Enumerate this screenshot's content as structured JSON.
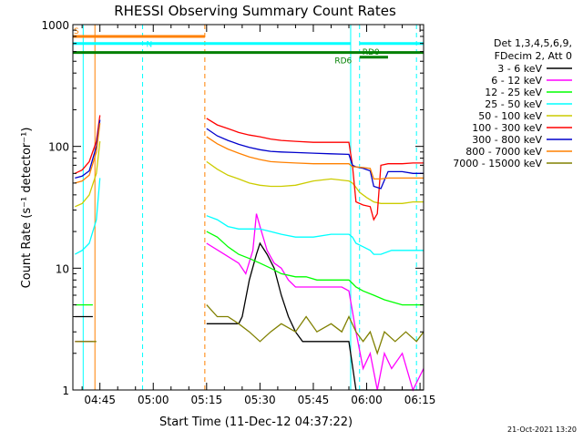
{
  "chart_data": {
    "type": "line",
    "title": "RHESSI Observing Summary Count Rates",
    "xlabel": "Start Time (11-Dec-12 04:37:22)",
    "ylabel": "Count Rate (s⁻¹ detector⁻¹)",
    "yscale": "log",
    "ylim": [
      1,
      1000
    ],
    "xlim_minutes_after_0400": [
      37.4,
      136
    ],
    "x_ticks": [
      {
        "label": "04:45",
        "min": 45
      },
      {
        "label": "05:00",
        "min": 60
      },
      {
        "label": "05:15",
        "min": 75
      },
      {
        "label": "05:30",
        "min": 90
      },
      {
        "label": "05:45",
        "min": 105
      },
      {
        "label": "06:00",
        "min": 120
      },
      {
        "label": "06:15",
        "min": 135
      }
    ],
    "y_ticks": [
      {
        "label": "1",
        "value": 1
      },
      {
        "label": "10",
        "value": 10
      },
      {
        "label": "100",
        "value": 100
      },
      {
        "label": "1000",
        "value": 1000
      }
    ],
    "legend_header": [
      "Det 1,3,4,5,6,9,",
      "FDecim 2, Att 0"
    ],
    "legend_placement": "right",
    "series": [
      {
        "name": "3 - 6 keV",
        "color": "#000000",
        "x": [
          38,
          40,
          42,
          43,
          75,
          77,
          80,
          84,
          85,
          87,
          89,
          90,
          92,
          94,
          96,
          98,
          100,
          102,
          105,
          110,
          115,
          117,
          119,
          122,
          124,
          126,
          128,
          130,
          132,
          134,
          136
        ],
        "y": [
          4,
          4,
          4,
          4,
          3.5,
          3.5,
          3.5,
          3.5,
          4,
          8,
          13,
          16,
          13,
          10,
          6,
          4,
          3,
          2.5,
          2.5,
          2.5,
          2.5,
          1,
          1,
          1,
          1,
          1,
          1,
          1,
          1,
          1,
          1
        ]
      },
      {
        "name": "6 - 12 keV",
        "color": "#ff00ff",
        "x": [
          38,
          40,
          42,
          43,
          75,
          80,
          84,
          86,
          88,
          89,
          90,
          92,
          94,
          96,
          98,
          100,
          103,
          106,
          110,
          113,
          115,
          117,
          119,
          121,
          123,
          125,
          127,
          130,
          133,
          136
        ],
        "y": [
          2.5,
          2.5,
          2.5,
          2.5,
          16,
          13,
          11,
          9,
          14,
          28,
          22,
          14,
          11,
          10,
          8,
          7,
          7,
          7,
          7,
          7,
          6.5,
          3,
          1.5,
          2,
          1,
          2,
          1.5,
          2,
          1,
          1.5
        ]
      },
      {
        "name": "12 - 25 keV",
        "color": "#00ff00",
        "x": [
          38,
          40,
          42,
          43,
          75,
          78,
          81,
          84,
          87,
          90,
          93,
          96,
          100,
          103,
          106,
          110,
          115,
          116,
          117,
          119,
          122,
          125,
          130,
          133,
          136
        ],
        "y": [
          5,
          5,
          5,
          5,
          20,
          18,
          15,
          13,
          12,
          11,
          10,
          9,
          8.5,
          8.5,
          8,
          8,
          8,
          7.5,
          7,
          6.5,
          6,
          5.5,
          5,
          5,
          5
        ]
      },
      {
        "name": "25 - 50 keV",
        "color": "#00ffff",
        "x": [
          38,
          40,
          42,
          44,
          45,
          75,
          78,
          81,
          84,
          87,
          90,
          93,
          96,
          100,
          105,
          110,
          115,
          116,
          117,
          119,
          121,
          122,
          124,
          127,
          130,
          133,
          136
        ],
        "y": [
          13,
          14,
          16,
          25,
          55,
          27,
          25,
          22,
          21,
          21,
          21,
          20,
          19,
          18,
          18,
          19,
          19,
          18,
          16,
          15,
          14,
          13,
          13,
          14,
          14,
          14,
          14
        ]
      },
      {
        "name": "50 - 100 keV",
        "color": "#cccc00",
        "x": [
          38,
          40,
          42,
          44,
          45,
          75,
          78,
          81,
          84,
          87,
          90,
          93,
          96,
          100,
          105,
          110,
          115,
          116,
          117,
          118,
          120,
          122,
          124,
          127,
          130,
          133,
          136
        ],
        "y": [
          32,
          34,
          40,
          60,
          110,
          75,
          65,
          58,
          54,
          50,
          48,
          47,
          47,
          48,
          52,
          54,
          52,
          50,
          46,
          42,
          38,
          35,
          34,
          34,
          34,
          35,
          35
        ]
      },
      {
        "name": "100 - 300 keV",
        "color": "#ff0000",
        "x": [
          38,
          40,
          42,
          44,
          45,
          75,
          78,
          81,
          84,
          87,
          90,
          93,
          96,
          100,
          105,
          110,
          115,
          116,
          117,
          119,
          121,
          122,
          123,
          124,
          126,
          128,
          130,
          133,
          136
        ],
        "y": [
          60,
          64,
          75,
          110,
          180,
          170,
          150,
          140,
          130,
          124,
          120,
          115,
          112,
          110,
          108,
          108,
          108,
          70,
          35,
          33,
          32,
          25,
          28,
          70,
          72,
          72,
          72,
          73,
          73
        ]
      },
      {
        "name": "300 - 800 keV",
        "color": "#0000cc",
        "x": [
          38,
          40,
          42,
          44,
          45,
          75,
          78,
          81,
          84,
          87,
          90,
          93,
          96,
          100,
          105,
          110,
          115,
          116,
          117,
          119,
          121,
          122,
          124,
          126,
          128,
          130,
          133,
          136
        ],
        "y": [
          55,
          57,
          63,
          100,
          165,
          140,
          122,
          112,
          104,
          98,
          94,
          91,
          90,
          89,
          88,
          87,
          86,
          70,
          68,
          66,
          63,
          47,
          45,
          62,
          62,
          62,
          60,
          60
        ]
      },
      {
        "name": "800 - 7000 keV",
        "color": "#ff8000",
        "x": [
          38,
          40,
          42,
          44,
          45,
          75,
          78,
          81,
          84,
          87,
          90,
          93,
          96,
          100,
          105,
          110,
          115,
          116,
          117,
          119,
          121,
          122,
          124,
          126,
          128,
          130,
          133,
          136
        ],
        "y": [
          50,
          52,
          58,
          90,
          155,
          120,
          105,
          95,
          88,
          82,
          78,
          75,
          74,
          73,
          72,
          72,
          72,
          68,
          68,
          67,
          66,
          54,
          54,
          55,
          55,
          55,
          55,
          55
        ]
      },
      {
        "name": "7000 - 15000 keV",
        "color": "#808000",
        "x": [
          38,
          40,
          42,
          44,
          75,
          78,
          81,
          84,
          87,
          90,
          93,
          96,
          100,
          103,
          106,
          110,
          113,
          115,
          117,
          119,
          121,
          123,
          125,
          128,
          131,
          134,
          136
        ],
        "y": [
          2.5,
          2.5,
          2.5,
          2.5,
          5,
          4,
          4,
          3.5,
          3,
          2.5,
          3,
          3.5,
          3,
          4,
          3,
          3.5,
          3,
          4,
          3,
          2.5,
          3,
          2,
          3,
          2.5,
          3,
          2.5,
          3
        ]
      }
    ],
    "attenuator_bars": [
      {
        "label": "S",
        "color": "#ff8000",
        "from": 37.4,
        "to": 74.5,
        "level": 800
      },
      {
        "label": "N",
        "color": "#00ffff",
        "from": 37.4,
        "to": 115.5,
        "level": 700
      },
      {
        "label": "",
        "color": "#00ffff",
        "from": 118,
        "to": 136,
        "level": 700
      },
      {
        "label": "RD6",
        "color": "#008000",
        "from": 37.4,
        "to": 136,
        "level": 590
      },
      {
        "label": "RD0",
        "color": "#008000",
        "from": 118,
        "to": 126,
        "level": 540
      }
    ],
    "vertical_markers": [
      {
        "min": 40.3,
        "color": "#00ffff",
        "style": "solid"
      },
      {
        "min": 43.6,
        "color": "#ff8000",
        "style": "solid"
      },
      {
        "min": 57.0,
        "color": "#00ffff",
        "style": "dashed"
      },
      {
        "min": 74.5,
        "color": "#ff8000",
        "style": "dashed"
      },
      {
        "min": 115.5,
        "color": "#00ffff",
        "style": "solid"
      },
      {
        "min": 118.0,
        "color": "#00ffff",
        "style": "dashed"
      },
      {
        "min": 134.0,
        "color": "#00ffff",
        "style": "dashed"
      }
    ],
    "footer_date": "21-Oct-2021 13:20"
  }
}
